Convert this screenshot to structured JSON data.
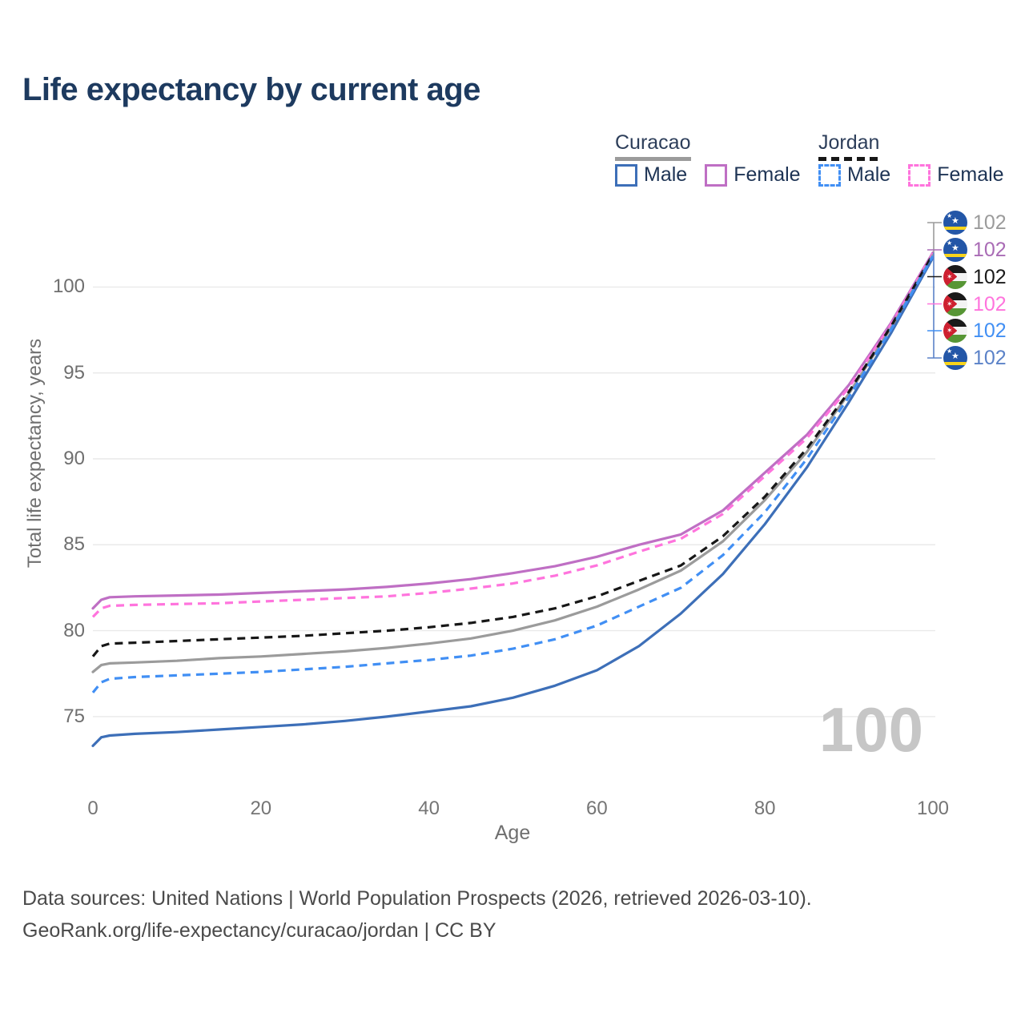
{
  "title": "Life expectancy by current age",
  "legend": {
    "curacao": {
      "label": "Curacao",
      "male": "Male",
      "female": "Female"
    },
    "jordan": {
      "label": "Jordan",
      "male": "Male",
      "female": "Female"
    }
  },
  "chart_data": {
    "type": "line",
    "title": "Life expectancy by current age",
    "xlabel": "Age",
    "ylabel": "Total life expectancy, years",
    "x_ticks": [
      0,
      20,
      40,
      60,
      80,
      100
    ],
    "y_ticks": [
      75,
      80,
      85,
      90,
      95,
      100
    ],
    "xlim": [
      0,
      100
    ],
    "ylim": [
      72.5,
      103
    ],
    "grid": "horizontal-only",
    "legend_position": "top-right",
    "series": [
      {
        "id": "curacao_female",
        "name": "Curacao Female",
        "color": "#bf6fc4",
        "dashed": false,
        "points": [
          [
            0,
            81.3
          ],
          [
            1,
            81.8
          ],
          [
            2,
            81.95
          ],
          [
            5,
            82.0
          ],
          [
            10,
            82.05
          ],
          [
            15,
            82.1
          ],
          [
            20,
            82.2
          ],
          [
            25,
            82.3
          ],
          [
            30,
            82.4
          ],
          [
            35,
            82.55
          ],
          [
            40,
            82.75
          ],
          [
            45,
            83.0
          ],
          [
            50,
            83.35
          ],
          [
            55,
            83.75
          ],
          [
            60,
            84.3
          ],
          [
            65,
            85.0
          ],
          [
            70,
            85.6
          ],
          [
            75,
            87.0
          ],
          [
            80,
            89.2
          ],
          [
            85,
            91.4
          ],
          [
            90,
            94.3
          ],
          [
            95,
            97.9
          ],
          [
            100,
            102.0
          ]
        ]
      },
      {
        "id": "jordan_female",
        "name": "Jordan Female",
        "color": "#ff74dd",
        "dashed": true,
        "points": [
          [
            0,
            80.8
          ],
          [
            1,
            81.3
          ],
          [
            2,
            81.45
          ],
          [
            5,
            81.5
          ],
          [
            10,
            81.55
          ],
          [
            15,
            81.6
          ],
          [
            20,
            81.7
          ],
          [
            25,
            81.8
          ],
          [
            30,
            81.9
          ],
          [
            35,
            82.0
          ],
          [
            40,
            82.2
          ],
          [
            45,
            82.45
          ],
          [
            50,
            82.75
          ],
          [
            55,
            83.2
          ],
          [
            60,
            83.8
          ],
          [
            65,
            84.6
          ],
          [
            70,
            85.35
          ],
          [
            75,
            86.8
          ],
          [
            80,
            89.0
          ],
          [
            85,
            91.2
          ],
          [
            90,
            94.15
          ],
          [
            95,
            97.8
          ],
          [
            100,
            101.95
          ]
        ]
      },
      {
        "id": "curacao_all",
        "name": "Curacao",
        "color": "#9b9b9b",
        "dashed": false,
        "points": [
          [
            0,
            77.6
          ],
          [
            1,
            78.0
          ],
          [
            2,
            78.1
          ],
          [
            5,
            78.15
          ],
          [
            10,
            78.25
          ],
          [
            15,
            78.4
          ],
          [
            20,
            78.5
          ],
          [
            25,
            78.65
          ],
          [
            30,
            78.8
          ],
          [
            35,
            79.0
          ],
          [
            40,
            79.25
          ],
          [
            45,
            79.55
          ],
          [
            50,
            80.0
          ],
          [
            55,
            80.6
          ],
          [
            60,
            81.4
          ],
          [
            65,
            82.4
          ],
          [
            70,
            83.5
          ],
          [
            75,
            85.2
          ],
          [
            80,
            87.6
          ],
          [
            85,
            90.4
          ],
          [
            90,
            93.8
          ],
          [
            95,
            97.6
          ],
          [
            100,
            101.85
          ]
        ],
        "header_for": "Curacao"
      },
      {
        "id": "jordan_all",
        "name": "Jordan",
        "color": "#171717",
        "dashed": true,
        "points": [
          [
            0,
            78.5
          ],
          [
            1,
            79.1
          ],
          [
            2,
            79.25
          ],
          [
            5,
            79.3
          ],
          [
            10,
            79.4
          ],
          [
            15,
            79.5
          ],
          [
            20,
            79.6
          ],
          [
            25,
            79.7
          ],
          [
            30,
            79.85
          ],
          [
            35,
            80.0
          ],
          [
            40,
            80.2
          ],
          [
            45,
            80.45
          ],
          [
            50,
            80.8
          ],
          [
            55,
            81.3
          ],
          [
            60,
            82.0
          ],
          [
            65,
            82.9
          ],
          [
            70,
            83.8
          ],
          [
            75,
            85.5
          ],
          [
            80,
            87.8
          ],
          [
            85,
            90.6
          ],
          [
            90,
            93.9
          ],
          [
            95,
            97.7
          ],
          [
            100,
            101.9
          ]
        ],
        "header_for": "Jordan"
      },
      {
        "id": "curacao_male",
        "name": "Curacao Male",
        "color": "#3d6fb8",
        "dashed": false,
        "points": [
          [
            0,
            73.3
          ],
          [
            1,
            73.8
          ],
          [
            2,
            73.9
          ],
          [
            5,
            74.0
          ],
          [
            10,
            74.1
          ],
          [
            15,
            74.25
          ],
          [
            20,
            74.4
          ],
          [
            25,
            74.55
          ],
          [
            30,
            74.75
          ],
          [
            35,
            75.0
          ],
          [
            40,
            75.3
          ],
          [
            45,
            75.6
          ],
          [
            50,
            76.1
          ],
          [
            55,
            76.8
          ],
          [
            60,
            77.7
          ],
          [
            65,
            79.1
          ],
          [
            70,
            81.0
          ],
          [
            75,
            83.3
          ],
          [
            80,
            86.2
          ],
          [
            85,
            89.5
          ],
          [
            90,
            93.3
          ],
          [
            95,
            97.3
          ],
          [
            100,
            101.7
          ]
        ]
      },
      {
        "id": "jordan_male",
        "name": "Jordan Male",
        "color": "#418ff4",
        "dashed": true,
        "points": [
          [
            0,
            76.4
          ],
          [
            1,
            77.0
          ],
          [
            2,
            77.2
          ],
          [
            5,
            77.3
          ],
          [
            10,
            77.4
          ],
          [
            15,
            77.5
          ],
          [
            20,
            77.6
          ],
          [
            25,
            77.75
          ],
          [
            30,
            77.9
          ],
          [
            35,
            78.1
          ],
          [
            40,
            78.3
          ],
          [
            45,
            78.55
          ],
          [
            50,
            78.95
          ],
          [
            55,
            79.5
          ],
          [
            60,
            80.3
          ],
          [
            65,
            81.4
          ],
          [
            70,
            82.5
          ],
          [
            75,
            84.4
          ],
          [
            80,
            86.9
          ],
          [
            85,
            90.0
          ],
          [
            90,
            93.6
          ],
          [
            95,
            97.5
          ],
          [
            100,
            101.8
          ]
        ]
      }
    ],
    "end_labels": [
      {
        "flag": "curacao",
        "series": "curacao_all",
        "value": "102",
        "color": "#9b9b9b"
      },
      {
        "flag": "curacao",
        "series": "curacao_female",
        "value": "102",
        "color": "#a96bb5"
      },
      {
        "flag": "jordan",
        "series": "jordan_all",
        "value": "102",
        "color": "#1a1a1a"
      },
      {
        "flag": "jordan",
        "series": "jordan_female",
        "value": "102",
        "color": "#ff74dd"
      },
      {
        "flag": "jordan",
        "series": "jordan_male",
        "value": "102",
        "color": "#418ff4"
      },
      {
        "flag": "curacao",
        "series": "curacao_male",
        "value": "102",
        "color": "#5b82c8"
      }
    ]
  },
  "watermark": "100",
  "footer": {
    "line1": "Data sources: United Nations | World Population Prospects (2026, retrieved 2026-03-10).",
    "line2": "GeoRank.org/life-expectancy/curacao/jordan | CC BY"
  }
}
